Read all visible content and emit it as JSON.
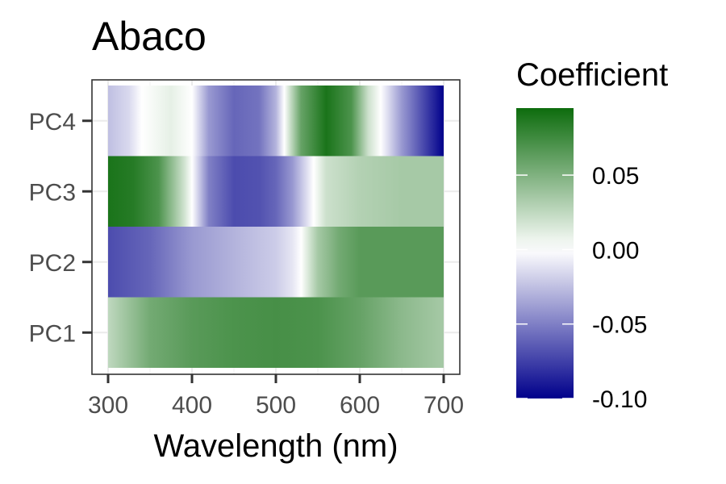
{
  "chart_data": {
    "type": "heatmap",
    "title": "Abaco",
    "xlabel": "Wavelength (nm)",
    "ylabel": "",
    "x_ticks": [
      300,
      400,
      500,
      600,
      700
    ],
    "xlim": [
      300,
      700
    ],
    "rows": [
      "PC1",
      "PC2",
      "PC3",
      "PC4"
    ],
    "grid": true,
    "legend": {
      "title": "Coefficient",
      "position": "right",
      "range": [
        -0.1,
        0.095
      ],
      "breaks": [
        -0.1,
        -0.05,
        0.0,
        0.05
      ],
      "break_labels": [
        "-0.10",
        "-0.05",
        "0.00",
        "0.05"
      ],
      "low_color": "#00008b",
      "mid_color": "#ffffff",
      "high_color": "#006400"
    },
    "series": [
      {
        "name": "PC1",
        "wavelengths": [
          300,
          325,
          350,
          375,
          400,
          450,
          500,
          550,
          600,
          650,
          700
        ],
        "values": [
          0.025,
          0.04,
          0.055,
          0.06,
          0.065,
          0.07,
          0.072,
          0.07,
          0.06,
          0.045,
          0.035
        ]
      },
      {
        "name": "PC2",
        "wavelengths": [
          300,
          350,
          400,
          450,
          500,
          520,
          530,
          550,
          575,
          600,
          650,
          700
        ],
        "values": [
          -0.07,
          -0.06,
          -0.04,
          -0.03,
          -0.02,
          -0.01,
          0.0,
          0.035,
          0.055,
          0.065,
          0.065,
          0.065
        ]
      },
      {
        "name": "PC3",
        "wavelengths": [
          300,
          330,
          360,
          390,
          400,
          420,
          450,
          480,
          500,
          520,
          545,
          560,
          600,
          650,
          700
        ],
        "values": [
          0.09,
          0.085,
          0.07,
          0.02,
          0.0,
          -0.05,
          -0.07,
          -0.068,
          -0.06,
          -0.04,
          0.0,
          0.02,
          0.03,
          0.035,
          0.035
        ]
      },
      {
        "name": "PC4",
        "wavelengths": [
          300,
          325,
          340,
          375,
          400,
          420,
          450,
          480,
          500,
          510,
          530,
          560,
          590,
          610,
          625,
          650,
          675,
          700
        ],
        "values": [
          -0.025,
          -0.015,
          0.0,
          0.01,
          0.0,
          -0.04,
          -0.06,
          -0.055,
          -0.03,
          0.0,
          0.06,
          0.09,
          0.07,
          0.02,
          0.0,
          -0.04,
          -0.07,
          -0.1
        ]
      }
    ]
  }
}
